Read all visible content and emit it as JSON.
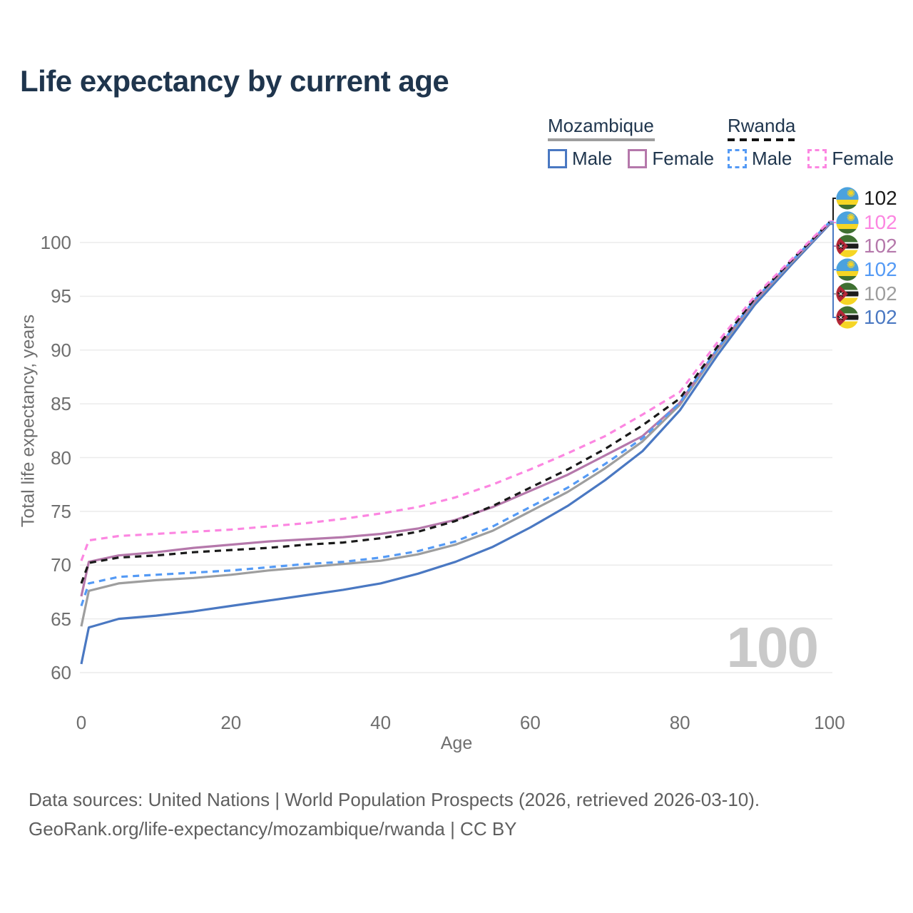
{
  "title": "Life expectancy by current age",
  "legend": {
    "mozambique": {
      "label": "Mozambique",
      "male": "Male",
      "female": "Female",
      "underline_color": "#9e9e9e",
      "male_color": "#4a78c2",
      "female_color": "#b578ab"
    },
    "rwanda": {
      "label": "Rwanda",
      "male": "Male",
      "female": "Female",
      "underline_color": "#141414",
      "male_color": "#549af5",
      "female_color": "#fc86e1"
    }
  },
  "icons": {
    "rwanda": "rwanda-flag-icon",
    "mozambique": "mozambique-flag-icon"
  },
  "watermark": {
    "value": "100"
  },
  "footer": {
    "line1": "Data sources: United Nations | World Population Prospects (2026, retrieved 2026-03-10).",
    "line2": "GeoRank.org/life-expectancy/mozambique/rwanda | CC BY"
  },
  "chart_data": {
    "type": "line",
    "title": "Life expectancy by current age",
    "xlabel": "Age",
    "ylabel": "Total life expectancy, years",
    "xlim": [
      0,
      100
    ],
    "ylim": [
      60,
      100
    ],
    "x_ticks": [
      0,
      20,
      40,
      60,
      80,
      100
    ],
    "y_ticks": [
      60,
      65,
      70,
      75,
      80,
      85,
      90,
      95,
      100
    ],
    "grid": "horizontal",
    "legend_position": "top-right",
    "x": [
      0,
      1,
      5,
      10,
      15,
      20,
      25,
      30,
      35,
      40,
      45,
      50,
      55,
      60,
      65,
      70,
      75,
      80,
      85,
      90,
      95,
      100
    ],
    "series": [
      {
        "name": "Rwanda",
        "country": "rwanda",
        "color": "#1a1a1a",
        "line_style": "dashed",
        "end_label": "102",
        "values": [
          68.3,
          70.2,
          70.7,
          70.9,
          71.2,
          71.4,
          71.6,
          71.9,
          72.1,
          72.5,
          73.1,
          74.1,
          75.5,
          77.2,
          78.9,
          80.8,
          83.0,
          85.5,
          90.3,
          94.8,
          98.4,
          101.9
        ]
      },
      {
        "name": "Rwanda Female",
        "country": "rwanda",
        "color": "#fc86e1",
        "line_style": "dashed",
        "end_label": "102",
        "values": [
          70.4,
          72.3,
          72.7,
          72.9,
          73.1,
          73.3,
          73.6,
          73.9,
          74.3,
          74.8,
          75.4,
          76.3,
          77.5,
          78.9,
          80.4,
          82.0,
          84.0,
          86.1,
          90.7,
          95.0,
          98.5,
          102.0
        ]
      },
      {
        "name": "Mozambique Female",
        "country": "mozambique",
        "color": "#b578ab",
        "line_style": "solid",
        "end_label": "102",
        "values": [
          67.1,
          70.3,
          70.9,
          71.2,
          71.6,
          71.9,
          72.2,
          72.4,
          72.6,
          72.9,
          73.4,
          74.2,
          75.4,
          76.9,
          78.4,
          80.2,
          82.0,
          85.1,
          90.1,
          94.6,
          98.3,
          101.8
        ]
      },
      {
        "name": "Rwanda Male",
        "country": "rwanda",
        "color": "#549af5",
        "line_style": "dashed",
        "end_label": "102",
        "values": [
          66.2,
          68.3,
          68.9,
          69.1,
          69.3,
          69.5,
          69.8,
          70.1,
          70.3,
          70.7,
          71.3,
          72.2,
          73.6,
          75.4,
          77.2,
          79.4,
          81.8,
          85.1,
          90.1,
          94.7,
          98.3,
          101.9
        ]
      },
      {
        "name": "Mozambique",
        "country": "mozambique",
        "color": "#9e9e9e",
        "line_style": "solid",
        "end_label": "102",
        "values": [
          64.3,
          67.6,
          68.3,
          68.6,
          68.8,
          69.1,
          69.5,
          69.8,
          70.1,
          70.4,
          71.0,
          71.9,
          73.2,
          75.0,
          76.8,
          79.0,
          81.5,
          84.9,
          89.9,
          94.5,
          98.2,
          101.8
        ]
      },
      {
        "name": "Mozambique Male",
        "country": "mozambique",
        "color": "#4a78c2",
        "line_style": "solid",
        "end_label": "102",
        "values": [
          60.8,
          64.2,
          65.0,
          65.3,
          65.7,
          66.2,
          66.7,
          67.2,
          67.7,
          68.3,
          69.2,
          70.3,
          71.7,
          73.5,
          75.5,
          77.9,
          80.6,
          84.4,
          89.5,
          94.2,
          98.0,
          101.7
        ]
      }
    ]
  }
}
